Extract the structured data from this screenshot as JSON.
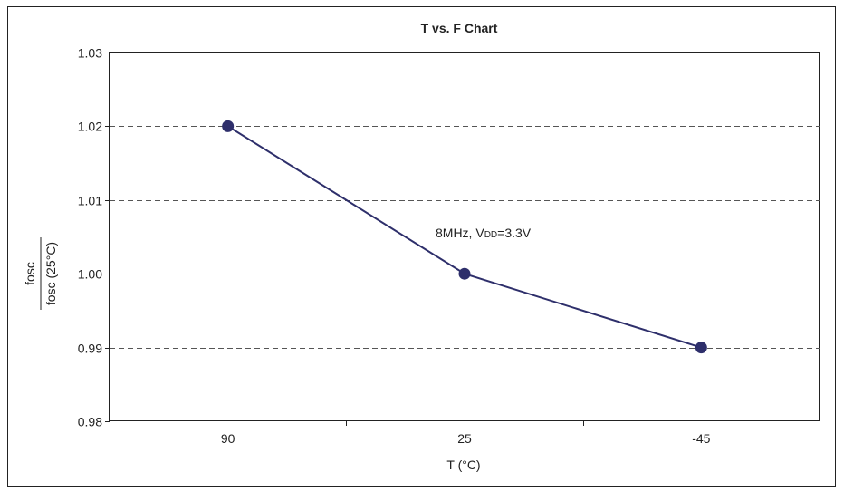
{
  "chart_data": {
    "type": "line",
    "title": "T vs. F Chart",
    "xlabel": "T (°C)",
    "ylabel": {
      "numerator": "fosc",
      "denominator": "fosc (25°C)"
    },
    "categories": [
      "90",
      "25",
      "-45"
    ],
    "series": [
      {
        "values": [
          1.02,
          1.0,
          0.99
        ]
      }
    ],
    "ylim": [
      0.98,
      1.03
    ],
    "yticks": [
      "0.98",
      "0.99",
      "1.00",
      "1.01",
      "1.02",
      "1.03"
    ],
    "grid": "horizontal dashed",
    "annotation": {
      "prefix": "8MHz, V",
      "subscript": "DD",
      "suffix": "=3.3V"
    },
    "colors": {
      "line": "#2e2f6b",
      "marker": "#2e2f6b",
      "grid": "#555555",
      "frame": "#222222"
    }
  }
}
